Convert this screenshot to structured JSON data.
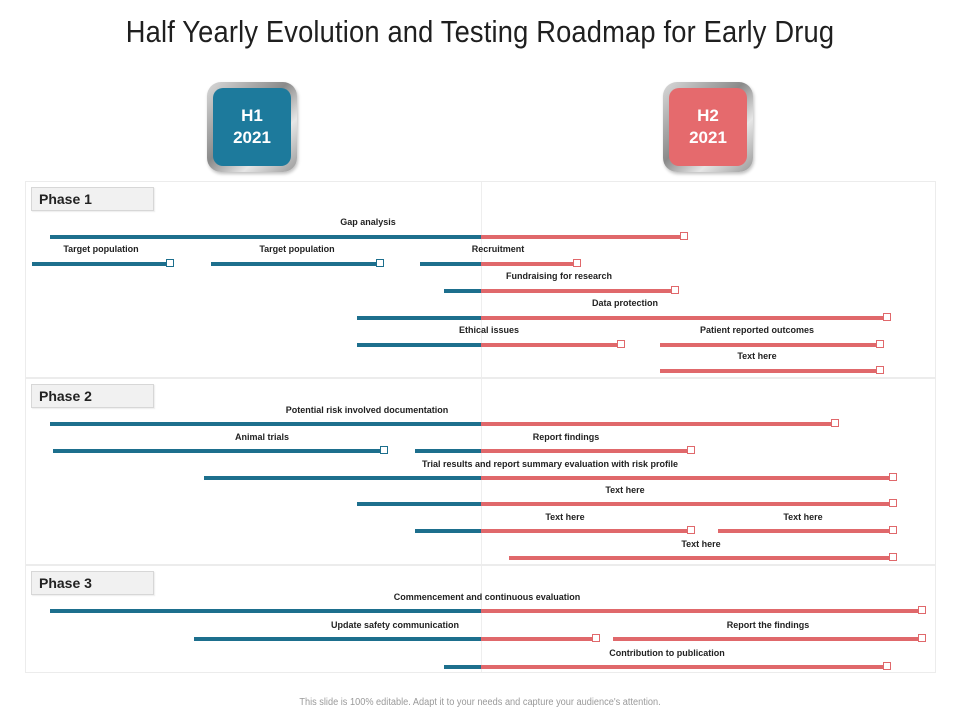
{
  "title": "Half Yearly Evolution and Testing Roadmap for Early Drug",
  "halves": [
    {
      "line1": "H1",
      "line2": "2021",
      "color": "#1d7a9c"
    },
    {
      "line1": "H2",
      "line2": "2021",
      "color": "#e56a6d"
    }
  ],
  "phases": [
    {
      "label": "Phase 1",
      "bars": [
        {
          "label": "Gap analysis"
        },
        {
          "label": "Target population"
        },
        {
          "label": "Target population"
        },
        {
          "label": "Recruitment"
        },
        {
          "label": "Fundraising for research"
        },
        {
          "label": "Data protection"
        },
        {
          "label": "Ethical issues"
        },
        {
          "label": "Patient reported outcomes"
        },
        {
          "label": "Text here"
        }
      ]
    },
    {
      "label": "Phase 2",
      "bars": [
        {
          "label": "Potential risk involved documentation"
        },
        {
          "label": "Animal trials"
        },
        {
          "label": "Report findings"
        },
        {
          "label": "Trial results and report summary evaluation with risk profile"
        },
        {
          "label": "Text here"
        },
        {
          "label": "Text here"
        },
        {
          "label": "Text here"
        },
        {
          "label": "Text here"
        }
      ]
    },
    {
      "label": "Phase 3",
      "bars": [
        {
          "label": "Commencement and continuous evaluation"
        },
        {
          "label": "Update safety communication"
        },
        {
          "label": "Report the findings"
        },
        {
          "label": "Contribution to publication"
        }
      ]
    }
  ],
  "footer": "This slide is 100% editable. Adapt it to your needs and capture your audience's attention."
}
